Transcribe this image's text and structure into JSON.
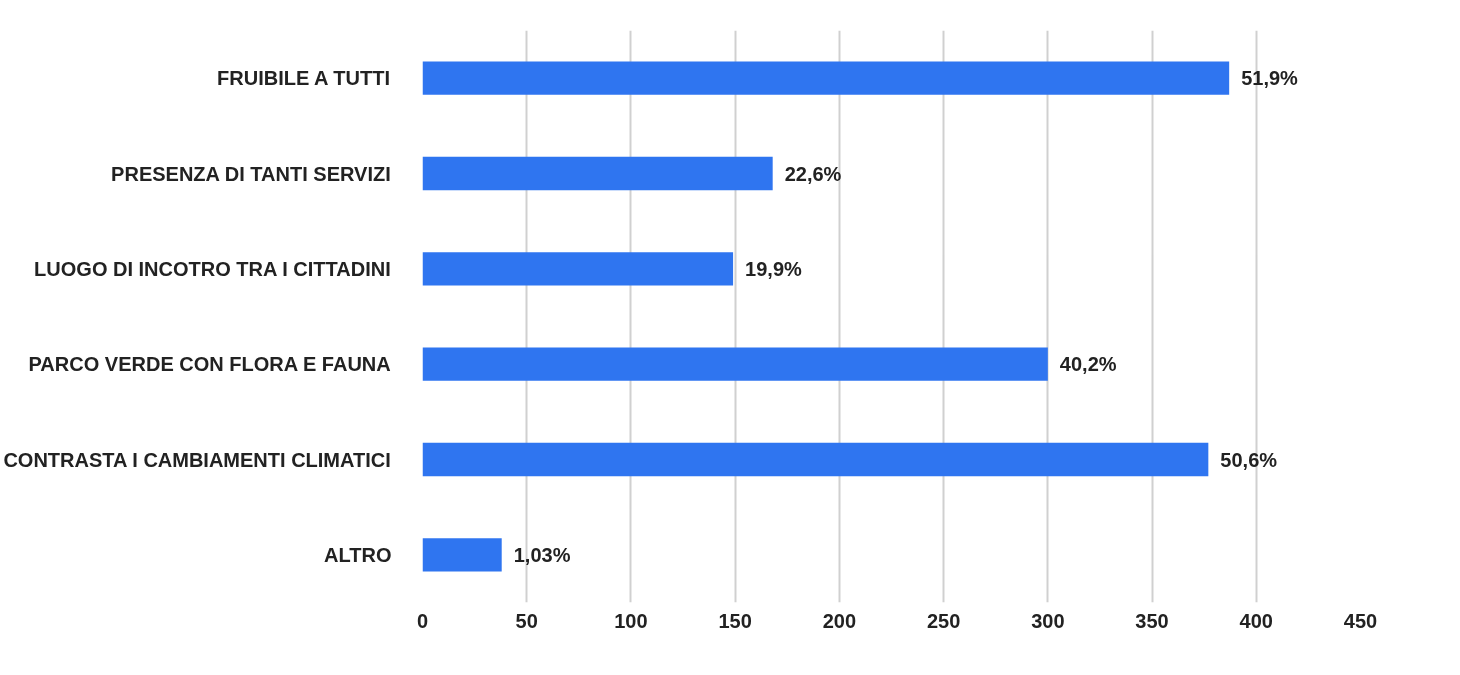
{
  "chart_data": {
    "type": "bar",
    "orientation": "horizontal",
    "categories": [
      "FRUIBILE A TUTTI",
      "PRESENZA DI TANTI SERVIZI",
      "LUOGO DI INCOTRO TRA I CITTADINI",
      "PARCO VERDE CON FLORA E FAUNA",
      "CONTRASTA I CAMBIAMENTI CLIMATICI",
      "ALTRO"
    ],
    "values": [
      387,
      168,
      149,
      300,
      377,
      38
    ],
    "annotations": [
      {
        "text": "51,9%",
        "x": 387,
        "y": "FRUIBILE A TUTTI"
      },
      {
        "text": "22,6%",
        "x": 168,
        "y": "PRESENZA DI TANTI SERVIZI"
      },
      {
        "text": "19,9%",
        "x": 149,
        "y": "LUOGO DI INCOTRO TRA I CITTADINI"
      },
      {
        "text": "40,2%",
        "x": 300,
        "y": "PARCO VERDE CON FLORA E FAUNA"
      },
      {
        "text": "50,6%",
        "x": 377,
        "y": "CONTRASTA I CAMBIAMENTI CLIMATICI"
      },
      {
        "text": "1,03%",
        "x": 38,
        "y": "ALTRO"
      }
    ],
    "color": "#2f75f0",
    "xlim": [
      0,
      450
    ],
    "xticks": [
      0,
      50,
      100,
      150,
      200,
      250,
      300,
      350,
      400,
      450
    ],
    "grid": "x"
  }
}
